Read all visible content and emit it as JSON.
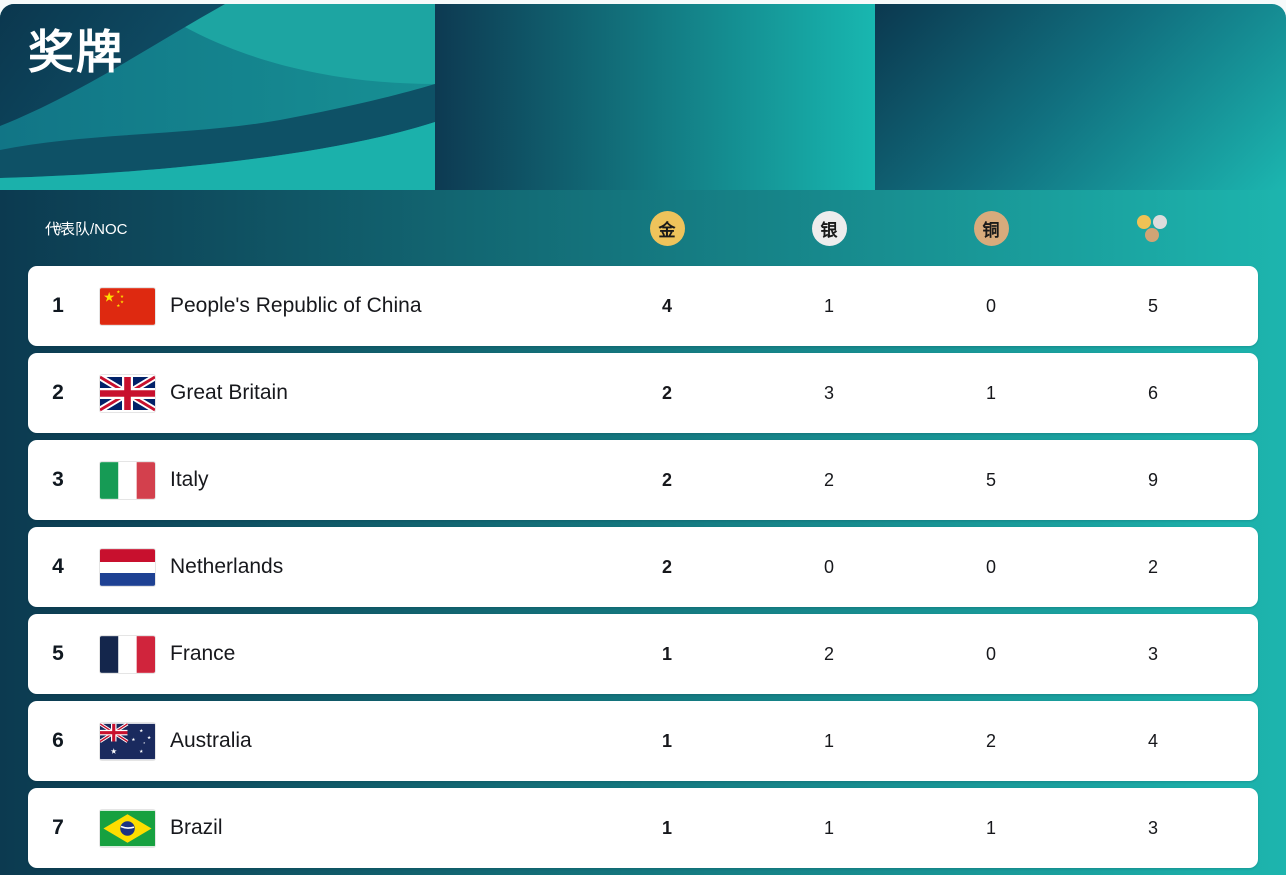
{
  "page": {
    "title": "奖牌"
  },
  "table": {
    "header": {
      "rank": "#",
      "team": "代表队/NOC",
      "gold": "金",
      "silver": "银",
      "bronze": "铜",
      "total_icon": "gold-silver-bronze-dots"
    },
    "rows": [
      {
        "rank": "1",
        "flag": "china",
        "name": "People's Republic of China",
        "gold": "4",
        "silver": "1",
        "bronze": "0",
        "total": "5"
      },
      {
        "rank": "2",
        "flag": "great-britain",
        "name": "Great Britain",
        "gold": "2",
        "silver": "3",
        "bronze": "1",
        "total": "6"
      },
      {
        "rank": "3",
        "flag": "italy",
        "name": "Italy",
        "gold": "2",
        "silver": "2",
        "bronze": "5",
        "total": "9"
      },
      {
        "rank": "4",
        "flag": "netherlands",
        "name": "Netherlands",
        "gold": "2",
        "silver": "0",
        "bronze": "0",
        "total": "2"
      },
      {
        "rank": "5",
        "flag": "france",
        "name": "France",
        "gold": "1",
        "silver": "2",
        "bronze": "0",
        "total": "3"
      },
      {
        "rank": "6",
        "flag": "australia",
        "name": "Australia",
        "gold": "1",
        "silver": "1",
        "bronze": "2",
        "total": "4"
      },
      {
        "rank": "7",
        "flag": "brazil",
        "name": "Brazil",
        "gold": "1",
        "silver": "1",
        "bronze": "1",
        "total": "3"
      }
    ]
  },
  "colors": {
    "gold": "#eec35b",
    "silver": "#ededed",
    "bronze": "#d8ab7c",
    "bg_dark_teal": "#0c3a50",
    "bg_bright_teal": "#1db5ae",
    "card": "#ffffff"
  }
}
